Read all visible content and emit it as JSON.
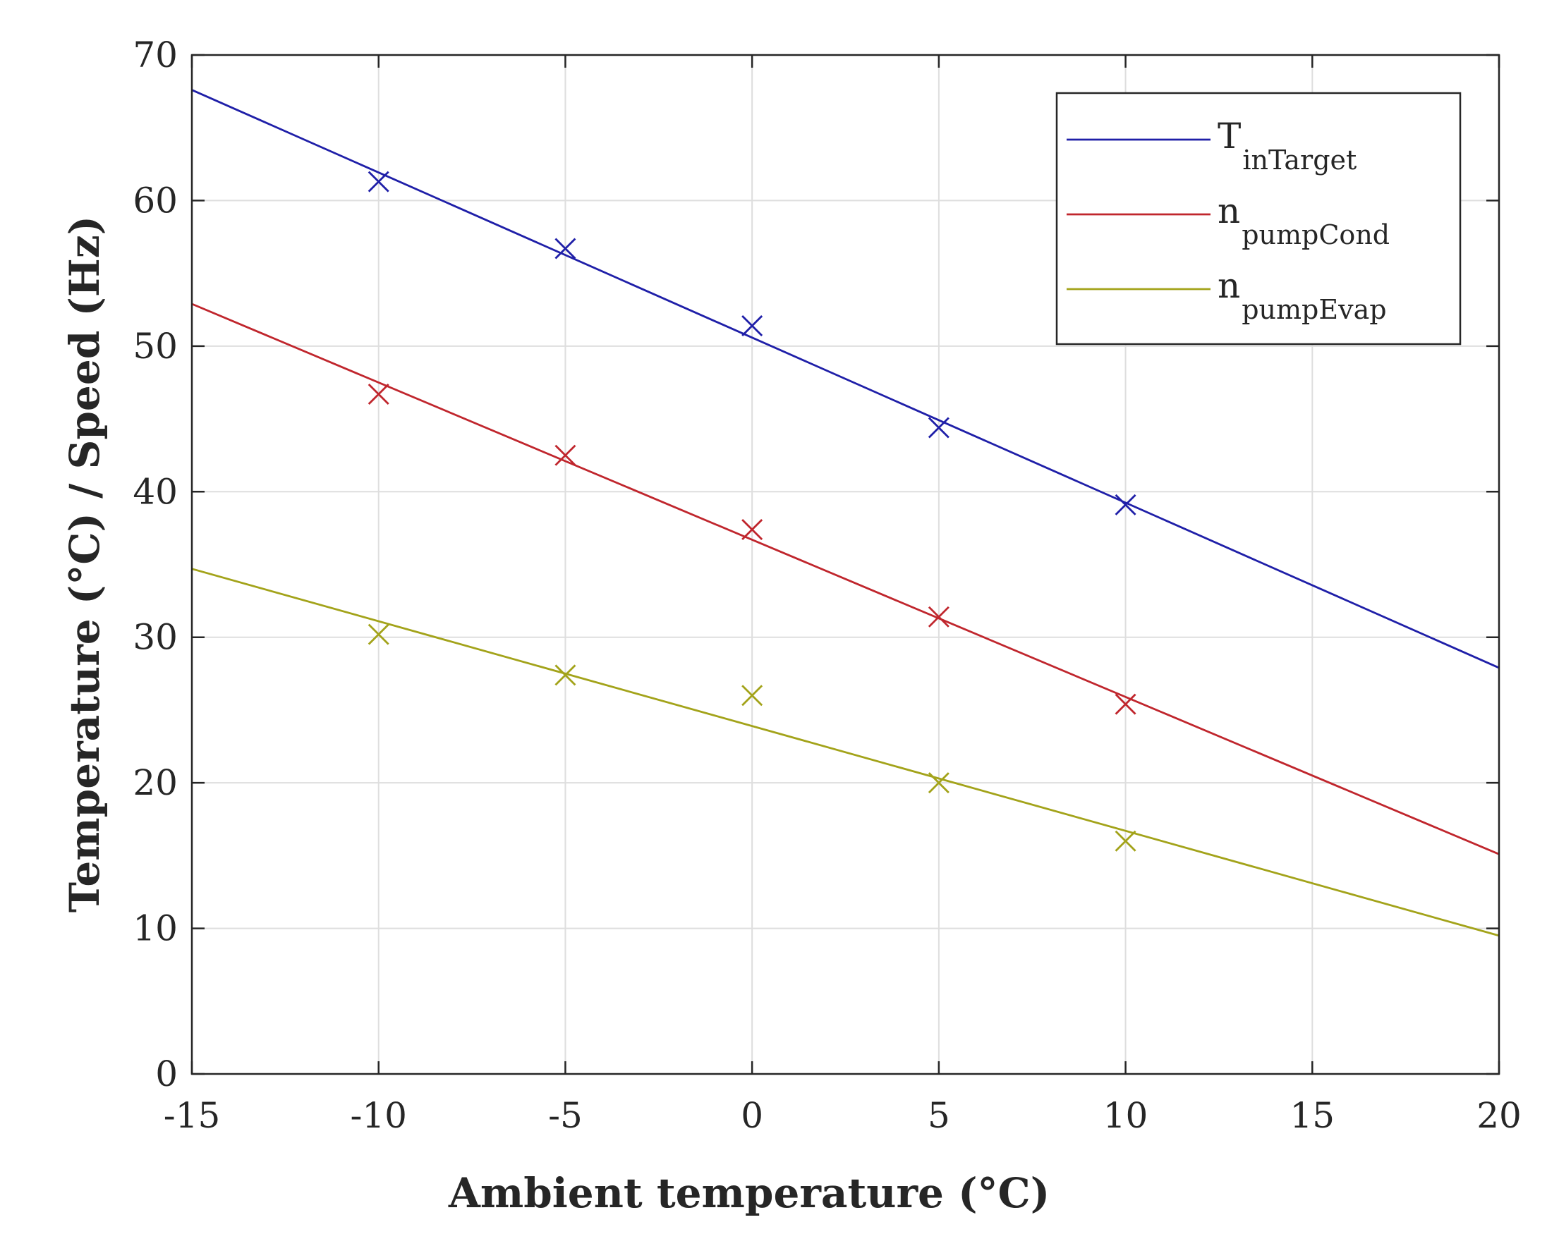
{
  "chart_data": {
    "type": "line",
    "title": "",
    "xlabel": "Ambient temperature (°C)",
    "ylabel": "Temperature (°C) / Speed (Hz)",
    "xlim": [
      -15,
      20
    ],
    "ylim": [
      0,
      70
    ],
    "xticks": [
      -15,
      -10,
      -5,
      0,
      5,
      10,
      15,
      20
    ],
    "yticks": [
      0,
      10,
      20,
      30,
      40,
      50,
      60,
      70
    ],
    "xtick_labels": [
      "-15",
      "-10",
      "-5",
      "0",
      "5",
      "10",
      "15",
      "20"
    ],
    "ytick_labels": [
      "0",
      "10",
      "20",
      "30",
      "40",
      "50",
      "60",
      "70"
    ],
    "grid": true,
    "legend_position": "top-right",
    "series": [
      {
        "name": "T_inTarget",
        "legend_main": "T",
        "legend_sub": "inTarget",
        "color": "#1f1fa8",
        "fit_line": [
          [
            -15,
            67.6
          ],
          [
            20,
            27.9
          ]
        ],
        "markers": [
          [
            -10,
            61.3
          ],
          [
            -5,
            56.7
          ],
          [
            0,
            51.4
          ],
          [
            5,
            44.4
          ],
          [
            10,
            39.1
          ]
        ]
      },
      {
        "name": "n_pumpCond",
        "legend_main": "n",
        "legend_sub": "pumpCond",
        "color": "#c0262d",
        "fit_line": [
          [
            -15,
            52.9
          ],
          [
            20,
            15.1
          ]
        ],
        "markers": [
          [
            -10,
            46.7
          ],
          [
            -5,
            42.5
          ],
          [
            0,
            37.4
          ],
          [
            5,
            31.4
          ],
          [
            10,
            25.4
          ]
        ]
      },
      {
        "name": "n_pumpEvap",
        "legend_main": "n",
        "legend_sub": "pumpEvap",
        "color": "#a3a31a",
        "fit_line": [
          [
            -15,
            34.7
          ],
          [
            20,
            9.5
          ]
        ],
        "markers": [
          [
            -10,
            30.2
          ],
          [
            -5,
            27.4
          ],
          [
            0,
            26.0
          ],
          [
            5,
            20.0
          ],
          [
            10,
            16.0
          ]
        ]
      }
    ]
  }
}
